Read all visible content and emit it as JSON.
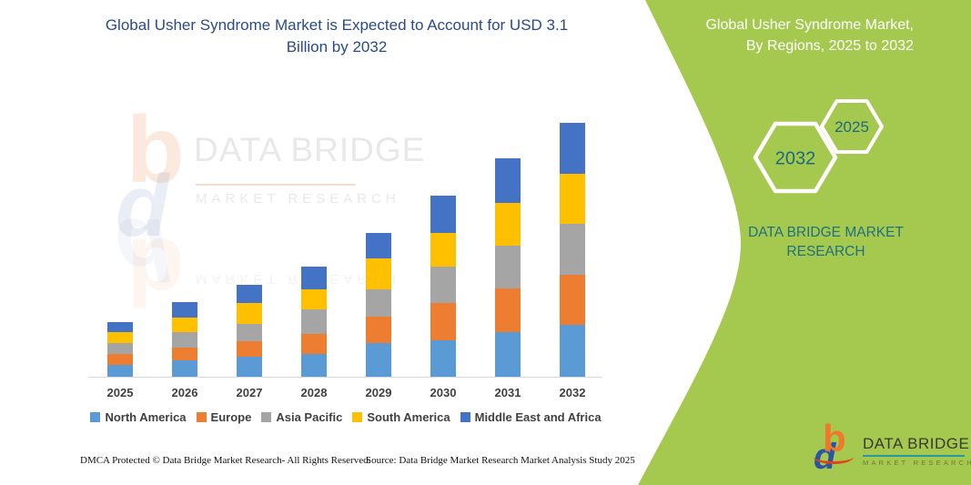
{
  "theme": {
    "panel_green": "#a5c94f",
    "title_navy": "#2a4a8a",
    "teal_accent": "#1f7080",
    "hex_label_color": "#1d6a7e",
    "axis_line_color": "#d9d9d9",
    "axis_label_color": "#404040"
  },
  "left": {
    "title": "Global Usher Syndrome Market is Expected to Account for USD 3.1 Billion by 2032",
    "footer_left": "DMCA Protected © Data Bridge Market Research- All Rights Reserved.",
    "footer_right": "Source: Data Bridge Market Research Market Analysis Study 2025"
  },
  "right_panel": {
    "title_line1": "Global Usher Syndrome Market,",
    "title_line2": "By Regions, 2025 to 2032",
    "hex_back_label": "2032",
    "hex_front_label": "2025",
    "brand_line1": "DATA BRIDGE MARKET",
    "brand_line2": "RESEARCH"
  },
  "watermark": {
    "wordmark": "DATA BRIDGE",
    "sub": "MARKET RESEARCH",
    "icon_letters": {
      "b": "b",
      "d": "d"
    }
  },
  "logo": {
    "wordmark": "DATA BRIDGE",
    "sub": "MARKET RESEARCH",
    "icon_letters": {
      "b": "b",
      "d": "d"
    }
  },
  "chart_data": {
    "type": "bar",
    "stacked": true,
    "title": "Global Usher Syndrome Market is Expected to Account for USD 3.1 Billion by 2032",
    "unit": "USD billion (estimated from bar heights; title states 2032 total = USD 3.1 billion)",
    "categories": [
      "2025",
      "2026",
      "2027",
      "2028",
      "2029",
      "2030",
      "2031",
      "2032"
    ],
    "series": [
      {
        "name": "North America",
        "color": "#5b9bd5",
        "values": [
          0.15,
          0.2,
          0.24,
          0.28,
          0.41,
          0.44,
          0.54,
          0.63
        ]
      },
      {
        "name": "Europe",
        "color": "#ed7d31",
        "values": [
          0.13,
          0.16,
          0.19,
          0.24,
          0.32,
          0.46,
          0.54,
          0.62
        ]
      },
      {
        "name": "Asia Pacific",
        "color": "#a5a5a5",
        "values": [
          0.13,
          0.19,
          0.22,
          0.3,
          0.34,
          0.44,
          0.52,
          0.62
        ]
      },
      {
        "name": "South America",
        "color": "#ffc000",
        "values": [
          0.13,
          0.17,
          0.25,
          0.25,
          0.38,
          0.42,
          0.52,
          0.61
        ]
      },
      {
        "name": "Middle East and Africa",
        "color": "#4472c4",
        "values": [
          0.13,
          0.19,
          0.22,
          0.28,
          0.31,
          0.45,
          0.55,
          0.62
        ]
      }
    ],
    "yearly_totals_estimate": [
      0.67,
      0.91,
      1.12,
      1.35,
      1.76,
      2.21,
      2.67,
      3.1
    ],
    "xlabel": "",
    "ylabel": "",
    "y_axis_visible": false,
    "gridlines": false,
    "legend_position": "bottom"
  }
}
